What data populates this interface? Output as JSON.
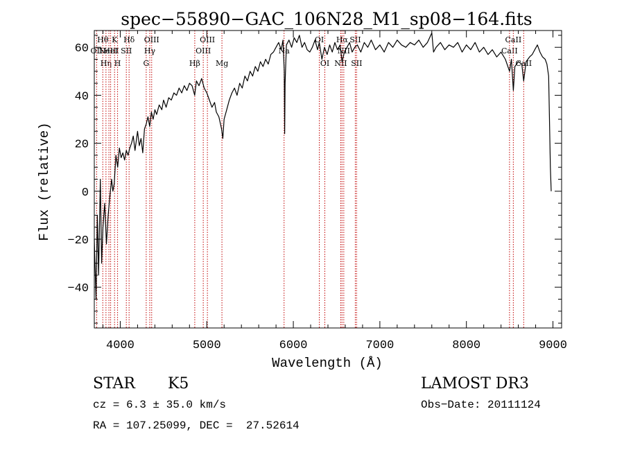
{
  "chart_data": {
    "type": "line",
    "title": "spec−55890−GAC_106N28_M1_sp08−164.fits",
    "xlabel": "Wavelength (Å)",
    "ylabel": "Flux (relative)",
    "xlim": [
      3700,
      9100
    ],
    "ylim": [
      -57,
      67
    ],
    "xticks": [
      {
        "value": 4000,
        "label": "4000"
      },
      {
        "value": 5000,
        "label": "5000"
      },
      {
        "value": 6000,
        "label": "6000"
      },
      {
        "value": 7000,
        "label": "7000"
      },
      {
        "value": 8000,
        "label": "8000"
      },
      {
        "value": 9000,
        "label": "9000"
      }
    ],
    "yticks": [
      {
        "value": -40,
        "label": "−40"
      },
      {
        "value": -20,
        "label": "−20"
      },
      {
        "value": 0,
        "label": "0"
      },
      {
        "value": 20,
        "label": "20"
      },
      {
        "value": 40,
        "label": "40"
      },
      {
        "value": 60,
        "label": "60"
      }
    ],
    "series": [
      {
        "name": "flux",
        "points": [
          [
            3700,
            -20
          ],
          [
            3720,
            -45
          ],
          [
            3735,
            -10
          ],
          [
            3750,
            -35
          ],
          [
            3770,
            5
          ],
          [
            3785,
            -30
          ],
          [
            3800,
            -15
          ],
          [
            3820,
            -5
          ],
          [
            3840,
            -22
          ],
          [
            3860,
            -10
          ],
          [
            3880,
            -2
          ],
          [
            3900,
            5
          ],
          [
            3915,
            0
          ],
          [
            3930,
            3
          ],
          [
            3950,
            15
          ],
          [
            3970,
            10
          ],
          [
            3990,
            18
          ],
          [
            4010,
            14
          ],
          [
            4030,
            16
          ],
          [
            4050,
            13
          ],
          [
            4070,
            17
          ],
          [
            4090,
            15
          ],
          [
            4110,
            18
          ],
          [
            4130,
            20
          ],
          [
            4150,
            23
          ],
          [
            4170,
            17
          ],
          [
            4200,
            25
          ],
          [
            4220,
            19
          ],
          [
            4240,
            22
          ],
          [
            4260,
            16
          ],
          [
            4280,
            26
          ],
          [
            4300,
            28
          ],
          [
            4320,
            31
          ],
          [
            4340,
            27
          ],
          [
            4360,
            33
          ],
          [
            4380,
            30
          ],
          [
            4400,
            34
          ],
          [
            4420,
            32
          ],
          [
            4450,
            36
          ],
          [
            4480,
            34
          ],
          [
            4500,
            38
          ],
          [
            4530,
            35
          ],
          [
            4560,
            39
          ],
          [
            4590,
            38
          ],
          [
            4620,
            41
          ],
          [
            4650,
            40
          ],
          [
            4680,
            43
          ],
          [
            4710,
            41
          ],
          [
            4740,
            44
          ],
          [
            4770,
            42
          ],
          [
            4800,
            45
          ],
          [
            4830,
            44
          ],
          [
            4860,
            40
          ],
          [
            4880,
            46
          ],
          [
            4910,
            44
          ],
          [
            4940,
            47
          ],
          [
            4970,
            43
          ],
          [
            5000,
            41
          ],
          [
            5030,
            38
          ],
          [
            5060,
            35
          ],
          [
            5090,
            37
          ],
          [
            5110,
            33
          ],
          [
            5140,
            31
          ],
          [
            5170,
            26
          ],
          [
            5185,
            22
          ],
          [
            5200,
            30
          ],
          [
            5230,
            34
          ],
          [
            5260,
            38
          ],
          [
            5290,
            41
          ],
          [
            5320,
            43
          ],
          [
            5350,
            40
          ],
          [
            5380,
            45
          ],
          [
            5410,
            43
          ],
          [
            5440,
            48
          ],
          [
            5470,
            46
          ],
          [
            5500,
            50
          ],
          [
            5530,
            48
          ],
          [
            5560,
            52
          ],
          [
            5590,
            50
          ],
          [
            5620,
            54
          ],
          [
            5650,
            52
          ],
          [
            5680,
            55
          ],
          [
            5710,
            53
          ],
          [
            5740,
            57
          ],
          [
            5770,
            58
          ],
          [
            5800,
            60
          ],
          [
            5830,
            62
          ],
          [
            5860,
            59
          ],
          [
            5880,
            63
          ],
          [
            5895,
            50
          ],
          [
            5900,
            24
          ],
          [
            5905,
            45
          ],
          [
            5920,
            61
          ],
          [
            5950,
            63
          ],
          [
            5980,
            60
          ],
          [
            6010,
            64
          ],
          [
            6040,
            62
          ],
          [
            6070,
            65
          ],
          [
            6100,
            60
          ],
          [
            6130,
            62
          ],
          [
            6160,
            59
          ],
          [
            6190,
            58
          ],
          [
            6220,
            60
          ],
          [
            6250,
            63
          ],
          [
            6280,
            59
          ],
          [
            6300,
            62
          ],
          [
            6330,
            55
          ],
          [
            6360,
            60
          ],
          [
            6390,
            57
          ],
          [
            6420,
            61
          ],
          [
            6450,
            58
          ],
          [
            6480,
            62
          ],
          [
            6510,
            59
          ],
          [
            6540,
            61
          ],
          [
            6563,
            54
          ],
          [
            6590,
            58
          ],
          [
            6620,
            60
          ],
          [
            6650,
            62
          ],
          [
            6680,
            58
          ],
          [
            6710,
            60
          ],
          [
            6740,
            61
          ],
          [
            6780,
            58
          ],
          [
            6820,
            62
          ],
          [
            6860,
            60
          ],
          [
            6900,
            63
          ],
          [
            6950,
            59
          ],
          [
            7000,
            61
          ],
          [
            7050,
            58
          ],
          [
            7100,
            62
          ],
          [
            7150,
            60
          ],
          [
            7200,
            63
          ],
          [
            7250,
            61
          ],
          [
            7300,
            60
          ],
          [
            7350,
            62
          ],
          [
            7400,
            61
          ],
          [
            7450,
            63
          ],
          [
            7500,
            60
          ],
          [
            7550,
            62
          ],
          [
            7600,
            66
          ],
          [
            7620,
            58
          ],
          [
            7650,
            60
          ],
          [
            7700,
            62
          ],
          [
            7750,
            59
          ],
          [
            7800,
            61
          ],
          [
            7850,
            60
          ],
          [
            7900,
            62
          ],
          [
            7950,
            58
          ],
          [
            8000,
            61
          ],
          [
            8050,
            59
          ],
          [
            8100,
            62
          ],
          [
            8150,
            58
          ],
          [
            8200,
            60
          ],
          [
            8250,
            57
          ],
          [
            8300,
            59
          ],
          [
            8350,
            56
          ],
          [
            8400,
            58
          ],
          [
            8450,
            55
          ],
          [
            8498,
            50
          ],
          [
            8520,
            55
          ],
          [
            8542,
            42
          ],
          [
            8560,
            52
          ],
          [
            8600,
            54
          ],
          [
            8640,
            53
          ],
          [
            8662,
            46
          ],
          [
            8690,
            54
          ],
          [
            8730,
            56
          ],
          [
            8760,
            57
          ],
          [
            8790,
            59
          ],
          [
            8820,
            61
          ],
          [
            8850,
            58
          ],
          [
            8880,
            56
          ],
          [
            8910,
            55
          ],
          [
            8930,
            53
          ],
          [
            8950,
            48
          ],
          [
            8960,
            30
          ],
          [
            8970,
            10
          ],
          [
            8980,
            0
          ]
        ]
      }
    ],
    "lines": [
      {
        "wavelength": 3727,
        "label": "OII",
        "row": 1
      },
      {
        "wavelength": 3798,
        "label": "Hθ",
        "row": 0
      },
      {
        "wavelength": 3835,
        "label": "Hη",
        "row": 2
      },
      {
        "wavelength": 3869,
        "label": "NeIII",
        "row": 1
      },
      {
        "wavelength": 3889,
        "label": "HeI",
        "row": 1
      },
      {
        "wavelength": 3934,
        "label": "K",
        "row": 0
      },
      {
        "wavelength": 3969,
        "label": "H",
        "row": 2
      },
      {
        "wavelength": 4070,
        "label": "SII",
        "row": 1
      },
      {
        "wavelength": 4102,
        "label": "Hδ",
        "row": 0
      },
      {
        "wavelength": 4300,
        "label": "G",
        "row": 2
      },
      {
        "wavelength": 4341,
        "label": "Hγ",
        "row": 1
      },
      {
        "wavelength": 4363,
        "label": "OIII",
        "row": 0
      },
      {
        "wavelength": 4861,
        "label": "Hβ",
        "row": 2
      },
      {
        "wavelength": 4959,
        "label": "OIII",
        "row": 1
      },
      {
        "wavelength": 5007,
        "label": "OIII",
        "row": 0
      },
      {
        "wavelength": 5175,
        "label": "Mg",
        "row": 2
      },
      {
        "wavelength": 5893,
        "label": "Na",
        "row": 1
      },
      {
        "wavelength": 6300,
        "label": "OI",
        "row": 0
      },
      {
        "wavelength": 6364,
        "label": "OI",
        "row": 2
      },
      {
        "wavelength": 6548,
        "label": "NII",
        "row": 2
      },
      {
        "wavelength": 6563,
        "label": "Hα",
        "row": 0
      },
      {
        "wavelength": 6583,
        "label": "NII",
        "row": 1
      },
      {
        "wavelength": 6716,
        "label": "SII",
        "row": 0
      },
      {
        "wavelength": 6731,
        "label": "SII",
        "row": 2
      },
      {
        "wavelength": 8498,
        "label": "CaII",
        "row": 1
      },
      {
        "wavelength": 8542,
        "label": "CaII",
        "row": 0
      },
      {
        "wavelength": 8662,
        "label": "CaII",
        "row": 2
      }
    ]
  },
  "info": {
    "object_class": "STAR",
    "subclass": "K5",
    "survey": "LAMOST DR3",
    "redshift": "cz = 6.3 ± 35.0 km/s",
    "obs_date": "Obs−Date: 20111124",
    "coords": "RA = 107.25099, DEC =  27.52614"
  }
}
